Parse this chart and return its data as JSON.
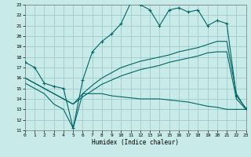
{
  "xlabel": "Humidex (Indice chaleur)",
  "bg_color": "#c8eae8",
  "grid_color": "#a0cccc",
  "line_color": "#006666",
  "xlim": [
    0,
    23
  ],
  "ylim": [
    11,
    23
  ],
  "yticks": [
    11,
    12,
    13,
    14,
    15,
    16,
    17,
    18,
    19,
    20,
    21,
    22,
    23
  ],
  "xticks": [
    0,
    1,
    2,
    3,
    4,
    5,
    6,
    7,
    8,
    9,
    10,
    11,
    12,
    13,
    14,
    15,
    16,
    17,
    18,
    19,
    20,
    21,
    22,
    23
  ],
  "line1_x": [
    0,
    1,
    2,
    3,
    4,
    5,
    6,
    7,
    8,
    9,
    10,
    11,
    12,
    13,
    14,
    15,
    16,
    17,
    18,
    19,
    20,
    21,
    22,
    23
  ],
  "line1_y": [
    17.5,
    17.0,
    15.5,
    15.2,
    15.0,
    11.2,
    15.8,
    18.5,
    19.5,
    20.2,
    21.2,
    23.2,
    23.0,
    22.5,
    21.0,
    22.5,
    22.7,
    22.3,
    22.5,
    21.0,
    21.5,
    21.2,
    14.3,
    13.1
  ],
  "line2_x": [
    0,
    1,
    2,
    3,
    4,
    5,
    6,
    7,
    8,
    9,
    10,
    11,
    12,
    13,
    14,
    15,
    16,
    17,
    18,
    19,
    20,
    21,
    22,
    23
  ],
  "line2_y": [
    16.0,
    15.5,
    15.0,
    14.5,
    14.0,
    13.5,
    14.5,
    15.3,
    16.0,
    16.5,
    17.0,
    17.3,
    17.6,
    17.8,
    18.0,
    18.2,
    18.5,
    18.7,
    18.9,
    19.2,
    19.5,
    19.5,
    14.5,
    13.0
  ],
  "line3_x": [
    0,
    1,
    2,
    3,
    4,
    5,
    6,
    7,
    8,
    9,
    10,
    11,
    12,
    13,
    14,
    15,
    16,
    17,
    18,
    19,
    20,
    21,
    22,
    23
  ],
  "line3_y": [
    16.0,
    15.5,
    15.0,
    14.5,
    14.0,
    13.5,
    14.2,
    14.8,
    15.4,
    15.8,
    16.2,
    16.5,
    16.8,
    17.0,
    17.2,
    17.5,
    17.7,
    17.9,
    18.1,
    18.4,
    18.5,
    18.5,
    14.0,
    13.0
  ],
  "line4_x": [
    0,
    1,
    2,
    3,
    4,
    5,
    6,
    7,
    8,
    9,
    10,
    11,
    12,
    13,
    14,
    15,
    16,
    17,
    18,
    19,
    20,
    21,
    22,
    23
  ],
  "line4_y": [
    15.5,
    15.0,
    14.5,
    13.5,
    13.0,
    11.2,
    14.5,
    14.5,
    14.5,
    14.3,
    14.2,
    14.1,
    14.0,
    14.0,
    14.0,
    13.9,
    13.8,
    13.7,
    13.5,
    13.3,
    13.2,
    13.0,
    13.0,
    13.0
  ]
}
